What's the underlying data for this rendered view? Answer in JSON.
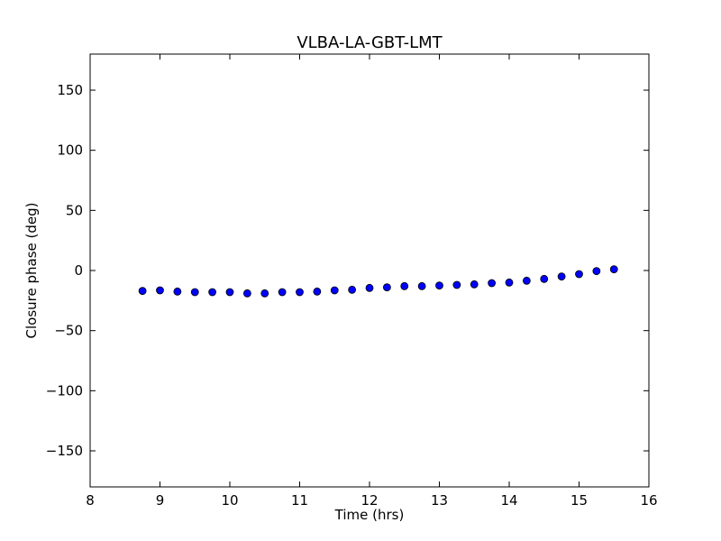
{
  "chart_data": {
    "type": "scatter",
    "title": "VLBA-LA-GBT-LMT",
    "xlabel": "Time (hrs)",
    "ylabel": "Closure phase (deg)",
    "xlim": [
      8,
      16
    ],
    "ylim": [
      -180,
      180
    ],
    "xticks": [
      8,
      9,
      10,
      11,
      12,
      13,
      14,
      15,
      16
    ],
    "xtick_labels": [
      "8",
      "9",
      "10",
      "11",
      "12",
      "13",
      "14",
      "15",
      "16"
    ],
    "yticks": [
      -150,
      -100,
      -50,
      0,
      50,
      100,
      150
    ],
    "ytick_labels": [
      "−150",
      "−100",
      "−50",
      "0",
      "50",
      "100",
      "150"
    ],
    "grid": false,
    "marker_color": "#0000ff",
    "marker_edge_color": "#000000",
    "series": [
      {
        "x": [
          8.75,
          9.0,
          9.25,
          9.5,
          9.75,
          10.0,
          10.25,
          10.5,
          10.75,
          11.0,
          11.25,
          11.5,
          11.75,
          12.0,
          12.25,
          12.5,
          12.75,
          13.0,
          13.25,
          13.5,
          13.75,
          14.0,
          14.25,
          14.5,
          14.75,
          15.0,
          15.25,
          15.5
        ],
        "y": [
          -17,
          -16.5,
          -17.5,
          -18,
          -18,
          -18,
          -19,
          -19,
          -18,
          -18,
          -17.5,
          -16.5,
          -16,
          -14.5,
          -14,
          -13,
          -13,
          -12.5,
          -12,
          -11.5,
          -10.5,
          -10,
          -8.5,
          -7,
          -5,
          -3,
          -0.5,
          1
        ]
      }
    ]
  }
}
